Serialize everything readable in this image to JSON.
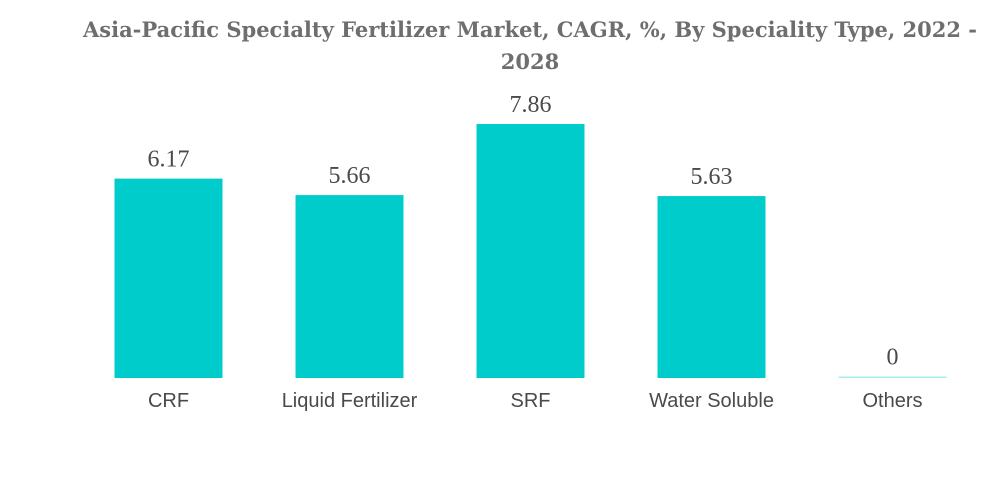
{
  "chart_data": {
    "type": "bar",
    "title": "Asia-Pacific Specialty Fertilizer Market, CAGR, %, By Speciality Type, 2022 - 2028",
    "categories": [
      "CRF",
      "Liquid Fertilizer",
      "SRF",
      "Water Soluble",
      "Others"
    ],
    "values": [
      6.17,
      5.66,
      7.86,
      5.63,
      0
    ],
    "value_labels": [
      "6.17",
      "5.66",
      "7.86",
      "5.63",
      "0"
    ],
    "xlabel": "",
    "ylabel": "",
    "ylim": [
      0,
      7.86
    ],
    "grid": false,
    "legend": "none",
    "bar_color": "#00cccc"
  }
}
